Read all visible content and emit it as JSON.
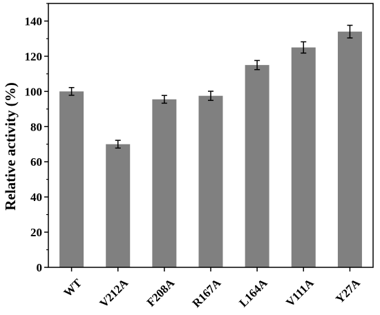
{
  "chart_data": {
    "type": "bar",
    "title": "",
    "xlabel": "",
    "ylabel": "Relative activity (%)",
    "categories": [
      "WT",
      "V212A",
      "F208A",
      "R167A",
      "L164A",
      "V111A",
      "Y27A"
    ],
    "values": [
      100,
      70,
      95.5,
      97.5,
      115,
      125,
      134
    ],
    "errors": [
      2.2,
      2.2,
      2.2,
      2.6,
      2.6,
      3.2,
      3.6
    ],
    "ylim": [
      0,
      150
    ],
    "yticks": [
      "0",
      "20",
      "40",
      "60",
      "80",
      "100",
      "120",
      "140"
    ],
    "grid": false,
    "bar_color": "#808080"
  }
}
